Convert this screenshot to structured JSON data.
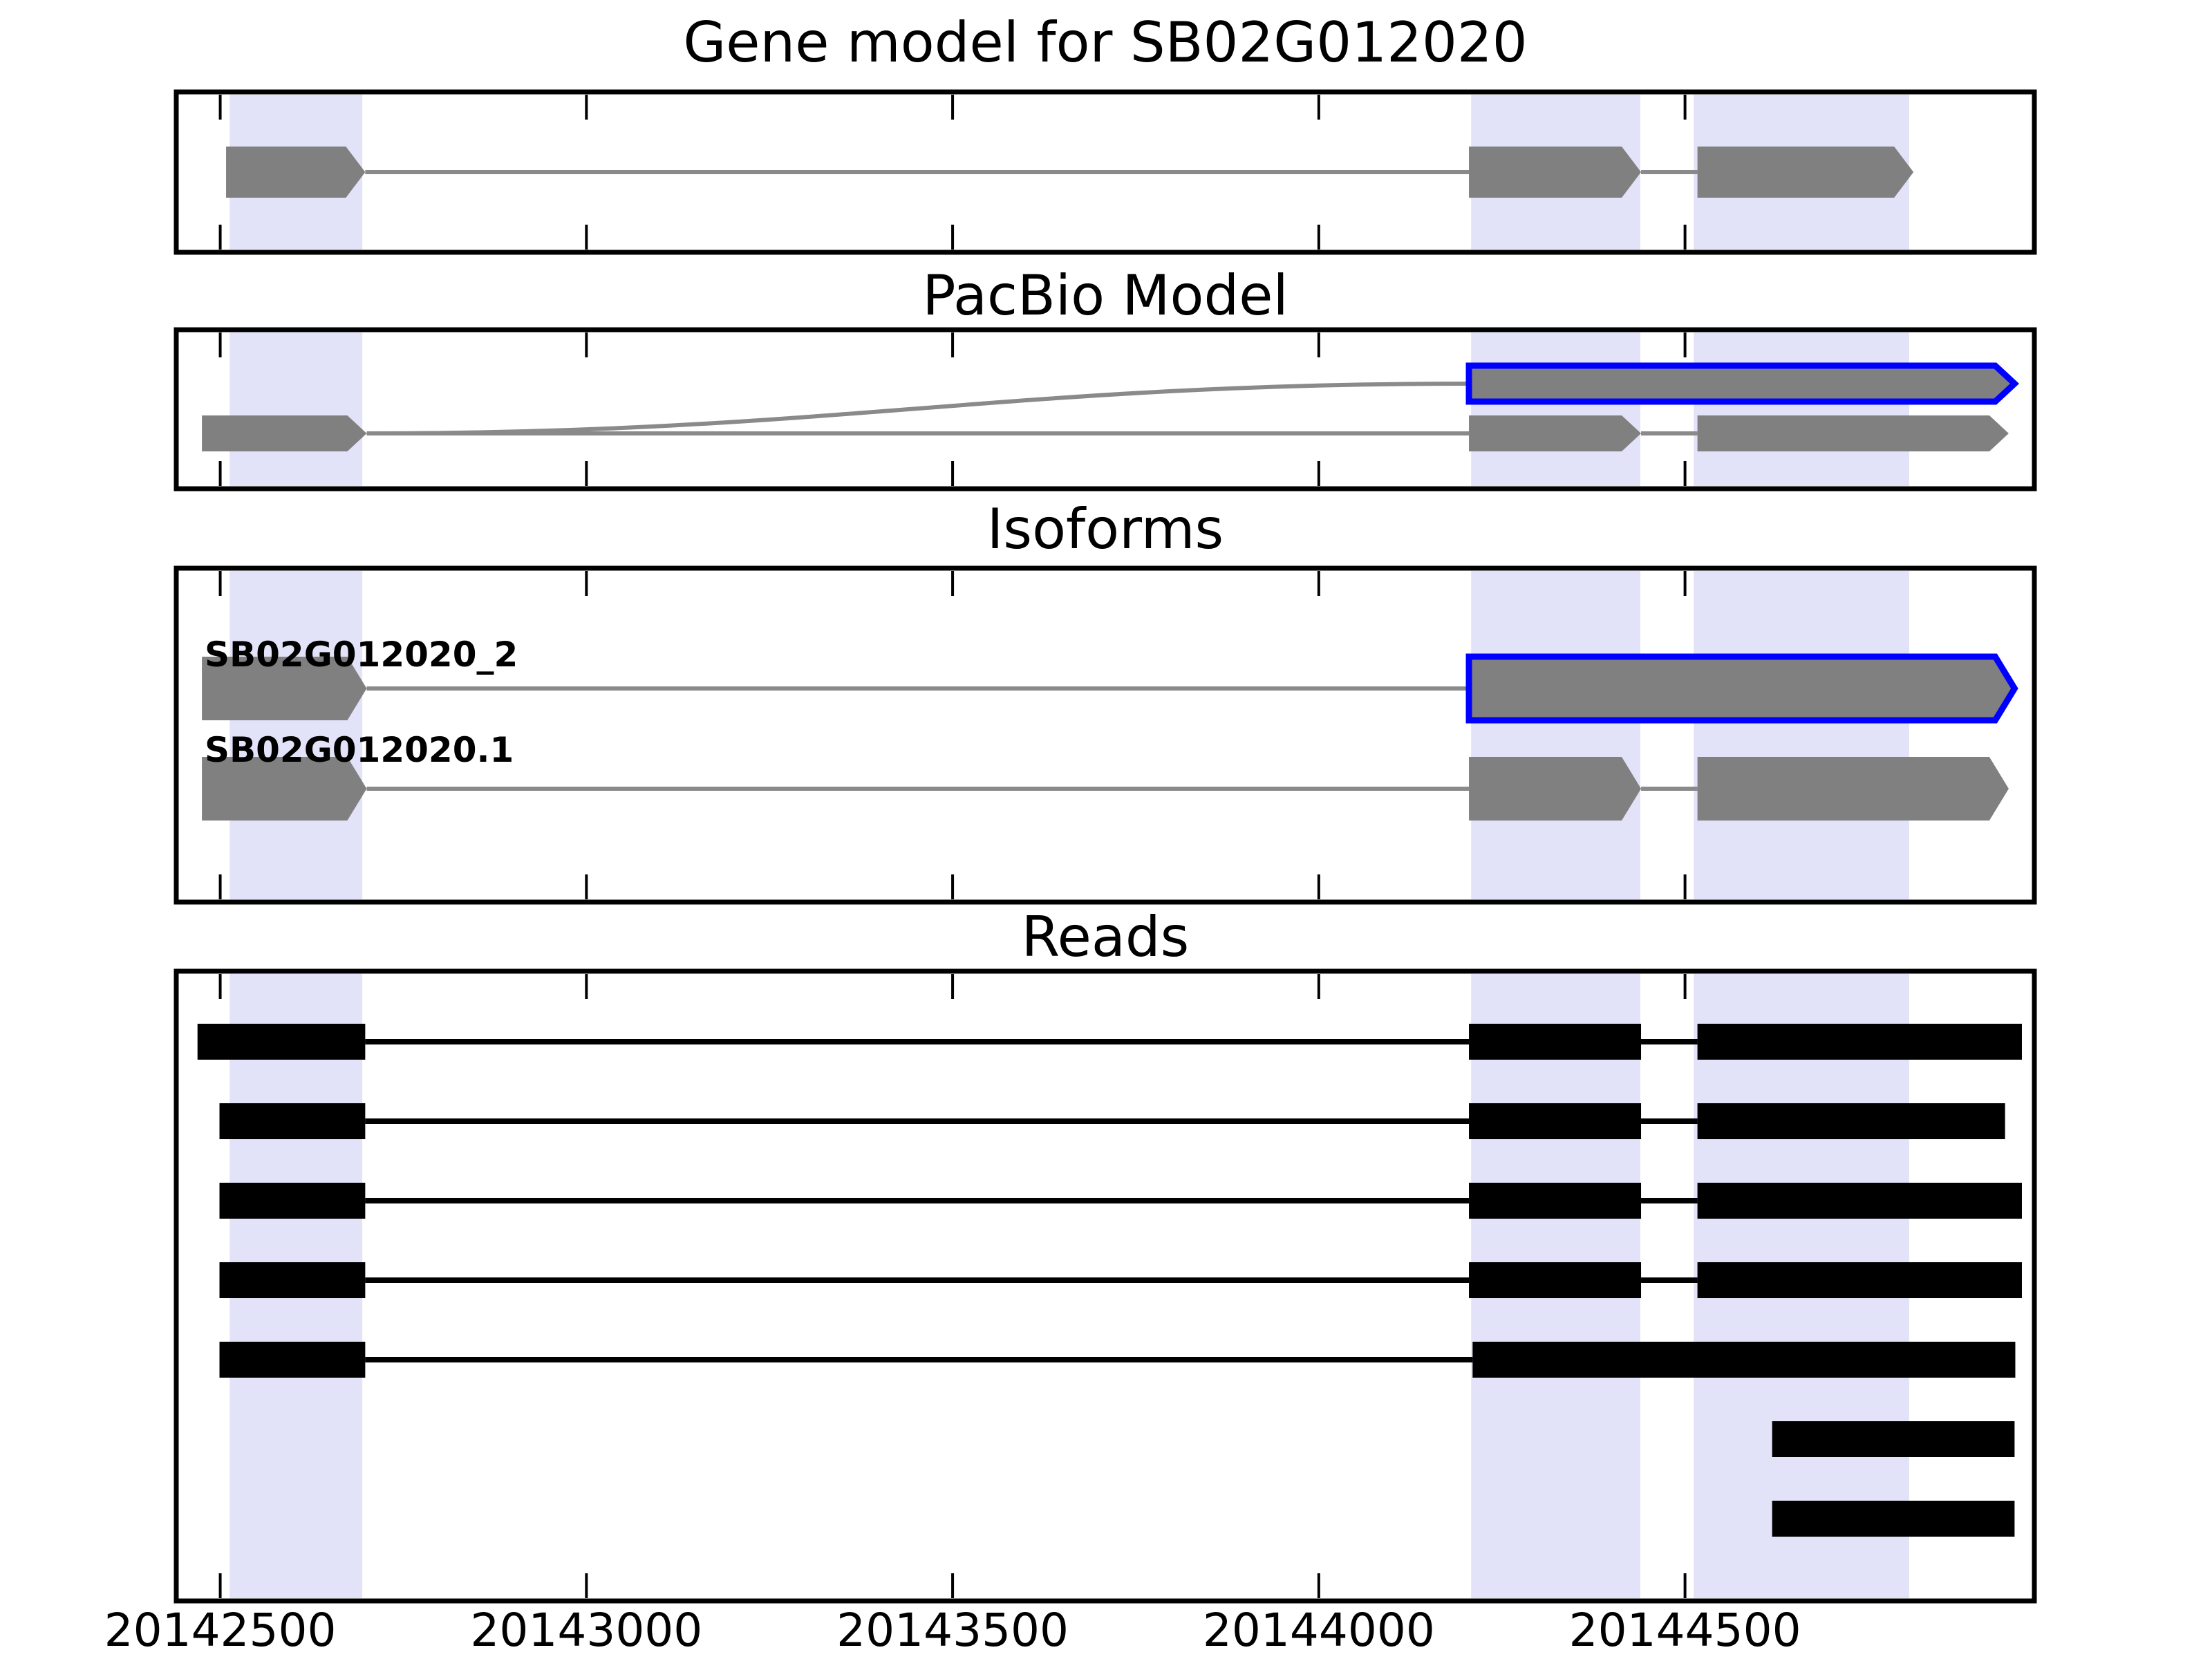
{
  "colors": {
    "background": "#ffffff",
    "highlight_band": "#e2e2f8",
    "exon_fill": "#808080",
    "intron_line": "#8a8a8a",
    "pacbio_outline": "#0000ff",
    "read_fill": "#000000",
    "panel_border": "#000000",
    "tick_color": "#000000"
  },
  "chart_data": {
    "type": "genome-browser",
    "gene_id": "SB02G012020",
    "axis": {
      "range_bp": [
        20142440,
        20144977
      ],
      "ticks": [
        "20142500",
        "20143000",
        "20143500",
        "20144000",
        "20144500"
      ],
      "tick_values": [
        20142500,
        20143000,
        20143500,
        20144000,
        20144500
      ],
      "grid": false
    },
    "highlight_regions": [
      {
        "start": 20142513,
        "end": 20142694
      },
      {
        "start": 20144208,
        "end": 20144439
      },
      {
        "start": 20144512,
        "end": 20144806
      }
    ],
    "panels": [
      {
        "id": "gene-model",
        "title": "Gene model for SB02G012020",
        "rows": [
          {
            "name": "gene-model-track",
            "type": "model",
            "exons": [
              [
                20142508,
                20142698
              ],
              [
                20144205,
                20144440
              ],
              [
                20144517,
                20144812
              ]
            ]
          }
        ]
      },
      {
        "id": "pacbio-model",
        "title": "PacBio Model",
        "rows": [
          {
            "name": "pacbio-transcript",
            "type": "model",
            "outline": "blue",
            "exons": [
              [
                20144205,
                20144950
              ]
            ],
            "curved_intron_from": 20142700
          },
          {
            "name": "gene-model-copy",
            "type": "model",
            "exons": [
              [
                20142475,
                20142700
              ],
              [
                20144205,
                20144440
              ],
              [
                20144517,
                20144942
              ]
            ]
          }
        ]
      },
      {
        "id": "isoforms",
        "title": "Isoforms",
        "rows": [
          {
            "name": "isoform-SB02G012020_2",
            "label": "SB02G012020_2",
            "type": "model",
            "outline_last": "blue",
            "exons": [
              [
                20142475,
                20142700
              ],
              [
                20144205,
                20144950
              ]
            ]
          },
          {
            "name": "isoform-SB02G012020.1",
            "label": "SB02G012020.1",
            "type": "model",
            "exons": [
              [
                20142475,
                20142700
              ],
              [
                20144205,
                20144440
              ],
              [
                20144517,
                20144942
              ]
            ]
          }
        ]
      },
      {
        "id": "reads",
        "title": "Reads",
        "rows": [
          {
            "name": "read-1",
            "type": "read",
            "segments": [
              [
                20142469,
                20142698
              ],
              [
                20144205,
                20144440
              ],
              [
                20144517,
                20144960
              ]
            ]
          },
          {
            "name": "read-2",
            "type": "read",
            "segments": [
              [
                20142499,
                20142698
              ],
              [
                20144205,
                20144440
              ],
              [
                20144517,
                20144937
              ]
            ]
          },
          {
            "name": "read-3",
            "type": "read",
            "segments": [
              [
                20142499,
                20142698
              ],
              [
                20144205,
                20144440
              ],
              [
                20144517,
                20144960
              ]
            ]
          },
          {
            "name": "read-4",
            "type": "read",
            "segments": [
              [
                20142499,
                20142698
              ],
              [
                20144205,
                20144440
              ],
              [
                20144517,
                20144960
              ]
            ]
          },
          {
            "name": "read-5",
            "type": "read",
            "segments": [
              [
                20142499,
                20142698
              ],
              [
                20144210,
                20144951
              ]
            ]
          },
          {
            "name": "read-6",
            "type": "read",
            "segments": [
              [
                20144619,
                20144950
              ]
            ]
          },
          {
            "name": "read-7",
            "type": "read",
            "segments": [
              [
                20144619,
                20144950
              ]
            ]
          }
        ]
      }
    ]
  }
}
